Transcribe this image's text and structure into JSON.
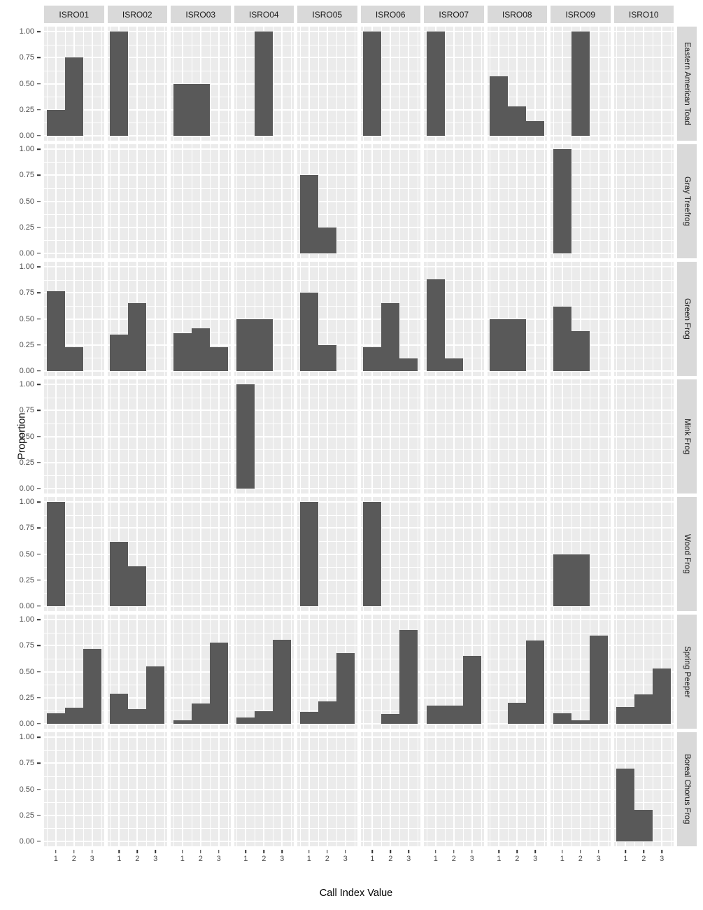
{
  "chart_data": {
    "type": "bar",
    "title": "",
    "xlabel": "Call Index Value",
    "ylabel": "Proportion",
    "x_categories": [
      "1",
      "2",
      "3"
    ],
    "x_tick_positions": [
      1,
      2,
      3
    ],
    "y_tick_labels": [
      "1.00",
      "0.75",
      "0.50",
      "0.25",
      "0.00"
    ],
    "y_tick_values": [
      1.0,
      0.75,
      0.5,
      0.25,
      0.0
    ],
    "ylim": [
      0,
      1
    ],
    "grid": "on",
    "legend": "none",
    "facet_columns": [
      "ISRO01",
      "ISRO02",
      "ISRO03",
      "ISRO04",
      "ISRO05",
      "ISRO06",
      "ISRO07",
      "ISRO08",
      "ISRO09",
      "ISRO10"
    ],
    "facet_rows": [
      "Eastern American Toad",
      "Gray Treefrog",
      "Green Frog",
      "Mink Frog",
      "Wood Frog",
      "Spring Peeper",
      "Boreal Chorus Frog"
    ],
    "values": [
      [
        [
          0.25,
          0.75,
          0
        ],
        [
          1,
          0,
          0
        ],
        [
          0.5,
          0.5,
          0
        ],
        [
          0,
          1,
          0
        ],
        [
          0,
          0,
          0
        ],
        [
          1,
          0,
          0
        ],
        [
          1,
          0,
          0
        ],
        [
          0.57,
          0.28,
          0.14
        ],
        [
          0,
          1,
          0
        ],
        [
          0,
          0,
          0
        ]
      ],
      [
        [
          0,
          0,
          0
        ],
        [
          0,
          0,
          0
        ],
        [
          0,
          0,
          0
        ],
        [
          0,
          0,
          0
        ],
        [
          0.75,
          0.25,
          0
        ],
        [
          0,
          0,
          0
        ],
        [
          0,
          0,
          0
        ],
        [
          0,
          0,
          0
        ],
        [
          1,
          0,
          0
        ],
        [
          0,
          0,
          0
        ]
      ],
      [
        [
          0.77,
          0.23,
          0
        ],
        [
          0.35,
          0.65,
          0
        ],
        [
          0.36,
          0.41,
          0.23
        ],
        [
          0.5,
          0.5,
          0
        ],
        [
          0.75,
          0.25,
          0
        ],
        [
          0.23,
          0.65,
          0.12
        ],
        [
          0.88,
          0.12,
          0
        ],
        [
          0.5,
          0.5,
          0
        ],
        [
          0.62,
          0.38,
          0
        ],
        [
          0,
          0,
          0
        ]
      ],
      [
        [
          0,
          0,
          0
        ],
        [
          0,
          0,
          0
        ],
        [
          0,
          0,
          0
        ],
        [
          1,
          0,
          0
        ],
        [
          0,
          0,
          0
        ],
        [
          0,
          0,
          0
        ],
        [
          0,
          0,
          0
        ],
        [
          0,
          0,
          0
        ],
        [
          0,
          0,
          0
        ],
        [
          0,
          0,
          0
        ]
      ],
      [
        [
          1,
          0,
          0
        ],
        [
          0.62,
          0.38,
          0
        ],
        [
          0,
          0,
          0
        ],
        [
          0,
          0,
          0
        ],
        [
          1,
          0,
          0
        ],
        [
          1,
          0,
          0
        ],
        [
          0,
          0,
          0
        ],
        [
          0,
          0,
          0
        ],
        [
          0.5,
          0.5,
          0
        ],
        [
          0,
          0,
          0
        ]
      ],
      [
        [
          0.1,
          0.15,
          0.72
        ],
        [
          0.29,
          0.14,
          0.55
        ],
        [
          0.03,
          0.19,
          0.78
        ],
        [
          0.06,
          0.12,
          0.81
        ],
        [
          0.11,
          0.21,
          0.68
        ],
        [
          0,
          0.09,
          0.9
        ],
        [
          0.17,
          0.17,
          0.65
        ],
        [
          0,
          0.2,
          0.8
        ],
        [
          0.1,
          0.03,
          0.85
        ],
        [
          0.16,
          0.28,
          0.53
        ]
      ],
      [
        [
          0,
          0,
          0
        ],
        [
          0,
          0,
          0
        ],
        [
          0,
          0,
          0
        ],
        [
          0,
          0,
          0
        ],
        [
          0,
          0,
          0
        ],
        [
          0,
          0,
          0
        ],
        [
          0,
          0,
          0
        ],
        [
          0,
          0,
          0
        ],
        [
          0,
          0,
          0
        ],
        [
          0.7,
          0.3,
          0
        ]
      ]
    ],
    "colors": {
      "bar_fill": "#595959",
      "panel_background": "#ebebeb",
      "strip_background": "#d9d9d9",
      "gridline": "#ffffff",
      "tick_text": "#4d4d4d",
      "strip_text": "#1a1a1a",
      "axis_title_text": "#000000"
    }
  }
}
